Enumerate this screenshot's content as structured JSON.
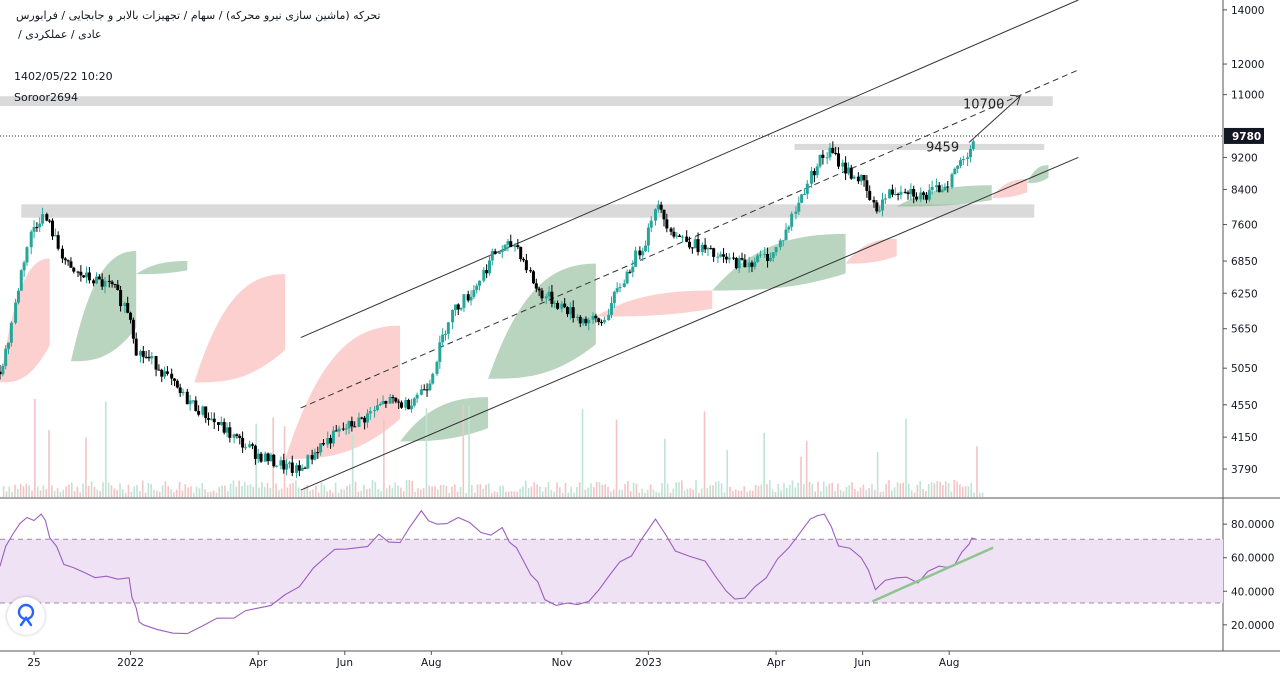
{
  "header": {
    "title": "تحرکه (ماشین سازی نیرو محرکه) / سهام / تجهیزات بالابر و جابجایی / فرابورس",
    "subtitle": "عادی / عملکردی /",
    "date": "1402/05/22 10:20",
    "author": "Soroor2694"
  },
  "colors": {
    "up_candle": "#26a69a",
    "down_candle": "#000000",
    "cloud_bullish": "#81b28b",
    "cloud_bearish": "#f7a9a7",
    "rsi_line": "#9c5fc0",
    "rsi_band": "#efe2f5",
    "zone": "#d6d6d6",
    "trend_green": "#8fc48f"
  },
  "chart_data": [
    {
      "type": "candlestick",
      "name": "price",
      "y_scale": "log",
      "ylim": [
        3500,
        14400
      ],
      "yticks": [
        3790,
        4150,
        4550,
        5050,
        5650,
        6250,
        6850,
        7600,
        8400,
        9200,
        11000,
        12000,
        14000
      ],
      "xticks": [
        "25",
        "2022",
        "Apr",
        "Jun",
        "Aug",
        "Nov",
        "2023",
        "Apr",
        "Jun",
        "Aug"
      ],
      "x_range": [
        "2021-10-01",
        "2024-02-10"
      ],
      "last_price": 9780,
      "annotations": [
        {
          "text": "10700",
          "value": 10700
        },
        {
          "text": "9459",
          "value": 9459
        }
      ],
      "support_resistance_zones": [
        {
          "from": "2021-10-16",
          "to": "2023-09-30",
          "low": 7750,
          "high": 8050
        },
        {
          "from": "2023-04-14",
          "to": "2023-10-07",
          "low": 9400,
          "high": 9560
        },
        {
          "from": "2021-10-01",
          "to": "2023-10-13",
          "low": 10650,
          "high": 10950
        }
      ],
      "channel": {
        "upper": [
          [
            "2022-05-01",
            5510
          ],
          [
            "2023-10-31",
            14400
          ]
        ],
        "middle_dashed": [
          [
            "2022-05-01",
            4510
          ],
          [
            "2023-10-31",
            11800
          ]
        ],
        "lower": [
          [
            "2022-05-01",
            3570
          ],
          [
            "2023-10-31",
            9200
          ]
        ]
      },
      "forecast_arrow": [
        [
          "2023-08-15",
          9600
        ],
        [
          "2023-09-20",
          10950
        ]
      ],
      "price_path": [
        [
          "2021-10-01",
          5000
        ],
        [
          "2021-10-08",
          5500
        ],
        [
          "2021-10-16",
          6600
        ],
        [
          "2021-10-24",
          7500
        ],
        [
          "2021-10-31",
          7800
        ],
        [
          "2021-11-05",
          7600
        ],
        [
          "2021-11-12",
          7100
        ],
        [
          "2021-11-20",
          6650
        ],
        [
          "2021-12-05",
          6500
        ],
        [
          "2021-12-20",
          6350
        ],
        [
          "2022-01-01",
          5900
        ],
        [
          "2022-01-06",
          5300
        ],
        [
          "2022-01-20",
          5100
        ],
        [
          "2022-02-05",
          4700
        ],
        [
          "2022-02-25",
          4400
        ],
        [
          "2022-03-15",
          4150
        ],
        [
          "2022-04-01",
          3950
        ],
        [
          "2022-04-15",
          3850
        ],
        [
          "2022-04-30",
          3760
        ],
        [
          "2022-05-15",
          4050
        ],
        [
          "2022-06-01",
          4250
        ],
        [
          "2022-06-15",
          4380
        ],
        [
          "2022-07-01",
          4600
        ],
        [
          "2022-07-15",
          4550
        ],
        [
          "2022-07-31",
          4850
        ],
        [
          "2022-08-15",
          5900
        ],
        [
          "2022-08-31",
          6300
        ],
        [
          "2022-09-15",
          7000
        ],
        [
          "2022-09-30",
          7200
        ],
        [
          "2022-10-15",
          6300
        ],
        [
          "2022-10-31",
          6050
        ],
        [
          "2022-11-15",
          5800
        ],
        [
          "2022-11-30",
          5750
        ],
        [
          "2022-12-15",
          6500
        ],
        [
          "2022-12-31",
          7300
        ],
        [
          "2023-01-06",
          8050
        ],
        [
          "2023-01-20",
          7400
        ],
        [
          "2023-02-05",
          7150
        ],
        [
          "2023-02-20",
          6900
        ],
        [
          "2023-03-10",
          6800
        ],
        [
          "2023-03-31",
          7000
        ],
        [
          "2023-04-10",
          7550
        ],
        [
          "2023-04-20",
          8300
        ],
        [
          "2023-05-01",
          9100
        ],
        [
          "2023-05-10",
          9350
        ],
        [
          "2023-05-20",
          8900
        ],
        [
          "2023-06-01",
          8600
        ],
        [
          "2023-06-10",
          7900
        ],
        [
          "2023-06-20",
          8300
        ],
        [
          "2023-07-01",
          8450
        ],
        [
          "2023-07-15",
          8200
        ],
        [
          "2023-07-31",
          8550
        ],
        [
          "2023-08-08",
          9000
        ],
        [
          "2023-08-15",
          9400
        ],
        [
          "2023-08-20",
          9780
        ]
      ],
      "ichimoku_cloud": [
        {
          "from": "2021-10-01",
          "to": "2021-11-05",
          "sentiment": "bearish",
          "top": 6900,
          "bottom": 4850
        },
        {
          "from": "2021-11-20",
          "to": "2022-01-05",
          "sentiment": "bullish",
          "top": 7050,
          "bottom": 5150
        },
        {
          "from": "2022-01-05",
          "to": "2022-02-10",
          "sentiment": "bullish",
          "top": 6850,
          "bottom": 6600
        },
        {
          "from": "2022-02-15",
          "to": "2022-04-20",
          "sentiment": "bearish",
          "top": 6600,
          "bottom": 4850
        },
        {
          "from": "2022-04-20",
          "to": "2022-07-10",
          "sentiment": "bearish",
          "top": 5700,
          "bottom": 3900
        },
        {
          "from": "2022-07-10",
          "to": "2022-09-10",
          "sentiment": "bullish",
          "top": 4650,
          "bottom": 4100
        },
        {
          "from": "2022-09-10",
          "to": "2022-11-25",
          "sentiment": "bullish",
          "top": 6800,
          "bottom": 4900
        },
        {
          "from": "2022-11-25",
          "to": "2023-02-15",
          "sentiment": "bearish",
          "top": 6300,
          "bottom": 5850
        },
        {
          "from": "2023-02-15",
          "to": "2023-05-20",
          "sentiment": "bullish",
          "top": 7400,
          "bottom": 6300
        },
        {
          "from": "2023-05-20",
          "to": "2023-06-25",
          "sentiment": "bearish",
          "top": 7300,
          "bottom": 6800
        },
        {
          "from": "2023-06-25",
          "to": "2023-08-31",
          "sentiment": "bullish",
          "top": 8500,
          "bottom": 8000
        },
        {
          "from": "2023-08-31",
          "to": "2023-09-25",
          "sentiment": "bearish",
          "top": 8650,
          "bottom": 8200
        },
        {
          "from": "2023-09-25",
          "to": "2023-10-10",
          "sentiment": "bullish",
          "top": 9000,
          "bottom": 8550
        }
      ]
    },
    {
      "type": "line",
      "name": "rsi",
      "ylim": [
        5,
        95
      ],
      "yticks": [
        20,
        40,
        60,
        80
      ],
      "ytick_labels": [
        "20.0000",
        "40.0000",
        "60.0000",
        "80.0000"
      ],
      "band": [
        33,
        71
      ],
      "points": [
        [
          "2021-10-01",
          55
        ],
        [
          "2021-10-10",
          74
        ],
        [
          "2021-10-20",
          84
        ],
        [
          "2021-10-30",
          86
        ],
        [
          "2021-11-05",
          72
        ],
        [
          "2021-11-15",
          56
        ],
        [
          "2021-11-30",
          51
        ],
        [
          "2021-12-15",
          49
        ],
        [
          "2021-12-31",
          48
        ],
        [
          "2022-01-05",
          30
        ],
        [
          "2022-01-10",
          20
        ],
        [
          "2022-01-31",
          15
        ],
        [
          "2022-02-20",
          19
        ],
        [
          "2022-03-15",
          24
        ],
        [
          "2022-04-01",
          30
        ],
        [
          "2022-04-20",
          38
        ],
        [
          "2022-05-10",
          54
        ],
        [
          "2022-05-25",
          65
        ],
        [
          "2022-06-10",
          66
        ],
        [
          "2022-06-25",
          74
        ],
        [
          "2022-07-10",
          69
        ],
        [
          "2022-07-25",
          88
        ],
        [
          "2022-08-05",
          80
        ],
        [
          "2022-08-20",
          84
        ],
        [
          "2022-09-05",
          75
        ],
        [
          "2022-09-20",
          78
        ],
        [
          "2022-09-30",
          66
        ],
        [
          "2022-10-10",
          50
        ],
        [
          "2022-10-20",
          35
        ],
        [
          "2022-11-05",
          33
        ],
        [
          "2022-11-20",
          34
        ],
        [
          "2022-12-05",
          50
        ],
        [
          "2022-12-20",
          61
        ],
        [
          "2023-01-06",
          83
        ],
        [
          "2023-01-20",
          64
        ],
        [
          "2023-02-10",
          58
        ],
        [
          "2023-02-25",
          40
        ],
        [
          "2023-03-10",
          36
        ],
        [
          "2023-03-25",
          48
        ],
        [
          "2023-04-10",
          66
        ],
        [
          "2023-04-25",
          83
        ],
        [
          "2023-05-05",
          86
        ],
        [
          "2023-05-15",
          67
        ],
        [
          "2023-05-31",
          60
        ],
        [
          "2023-06-10",
          41
        ],
        [
          "2023-06-25",
          48
        ],
        [
          "2023-07-10",
          45
        ],
        [
          "2023-07-25",
          55
        ],
        [
          "2023-08-05",
          56
        ],
        [
          "2023-08-15",
          68
        ],
        [
          "2023-08-20",
          71
        ]
      ],
      "trendline": [
        [
          "2023-06-08",
          34
        ],
        [
          "2023-09-01",
          66
        ]
      ]
    }
  ]
}
